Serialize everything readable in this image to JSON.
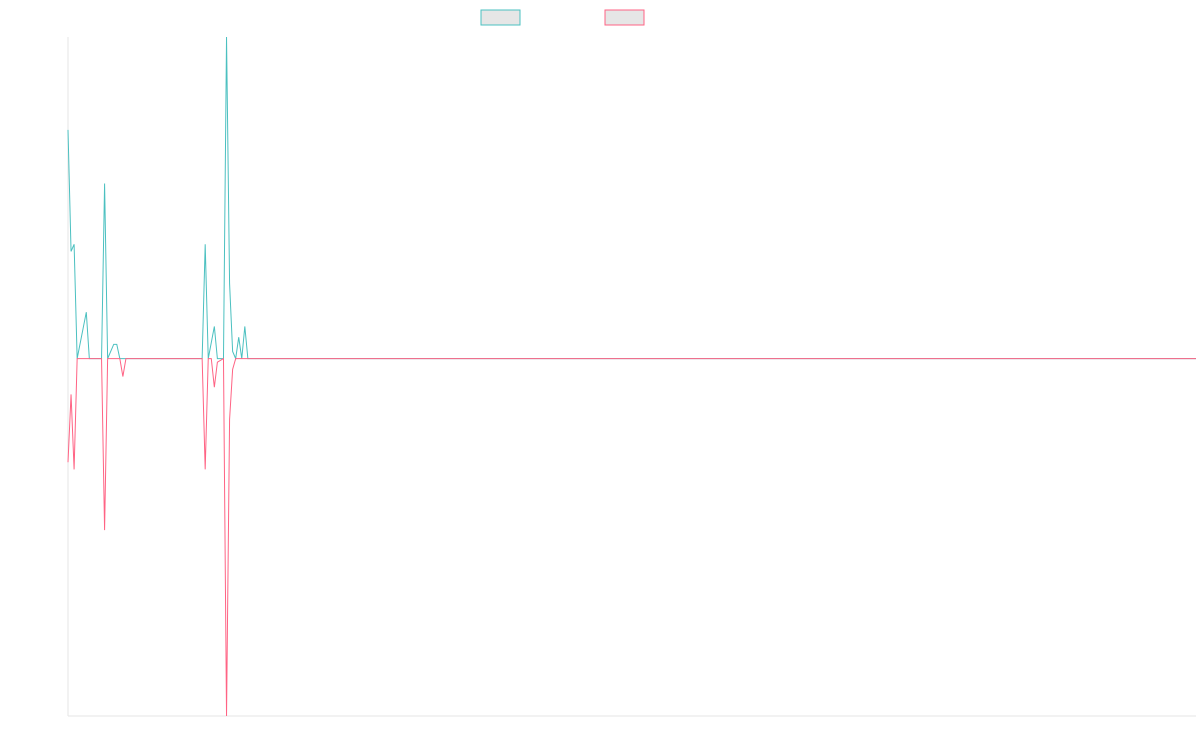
{
  "chart_data": {
    "type": "line",
    "title": "",
    "xlabel": "",
    "ylabel": "",
    "x_range": [
      0,
      370
    ],
    "ylim": [
      -1.0,
      0.9
    ],
    "grid": false,
    "legend": {
      "placement": "top-center",
      "entries": [
        "",
        ""
      ]
    },
    "series": [
      {
        "name": "",
        "color": "#4bc0c0",
        "fill": "#e6e6e6",
        "points": [
          [
            0,
            0.64
          ],
          [
            1,
            0.3
          ],
          [
            2,
            0.32
          ],
          [
            3,
            0.0
          ],
          [
            6,
            0.13
          ],
          [
            7,
            0.0
          ],
          [
            11,
            0.0
          ],
          [
            12,
            0.49
          ],
          [
            13,
            0.0
          ],
          [
            15,
            0.04
          ],
          [
            16,
            0.04
          ],
          [
            17,
            0.0
          ],
          [
            44,
            0.0
          ],
          [
            45,
            0.32
          ],
          [
            46,
            0.0
          ],
          [
            48,
            0.09
          ],
          [
            49,
            0.0
          ],
          [
            51,
            0.0
          ],
          [
            52,
            0.9
          ],
          [
            53,
            0.21
          ],
          [
            54,
            0.02
          ],
          [
            55,
            0.0
          ],
          [
            56,
            0.06
          ],
          [
            57,
            0.0
          ],
          [
            58,
            0.09
          ],
          [
            59,
            0.0
          ],
          [
            370,
            0.0
          ]
        ]
      },
      {
        "name": "",
        "color": "#ff6384",
        "fill": "#e6e6e6",
        "points": [
          [
            0,
            -0.29
          ],
          [
            1,
            -0.1
          ],
          [
            2,
            -0.31
          ],
          [
            3,
            0.0
          ],
          [
            11,
            0.0
          ],
          [
            12,
            -0.48
          ],
          [
            13,
            0.0
          ],
          [
            17,
            0.0
          ],
          [
            18,
            -0.05
          ],
          [
            19,
            0.0
          ],
          [
            44,
            0.0
          ],
          [
            45,
            -0.31
          ],
          [
            46,
            0.0
          ],
          [
            47,
            0.0
          ],
          [
            48,
            -0.08
          ],
          [
            49,
            -0.01
          ],
          [
            51,
            0.0
          ],
          [
            52,
            -1.0
          ],
          [
            53,
            -0.17
          ],
          [
            54,
            -0.03
          ],
          [
            55,
            0.0
          ],
          [
            370,
            0.0
          ]
        ]
      }
    ]
  }
}
